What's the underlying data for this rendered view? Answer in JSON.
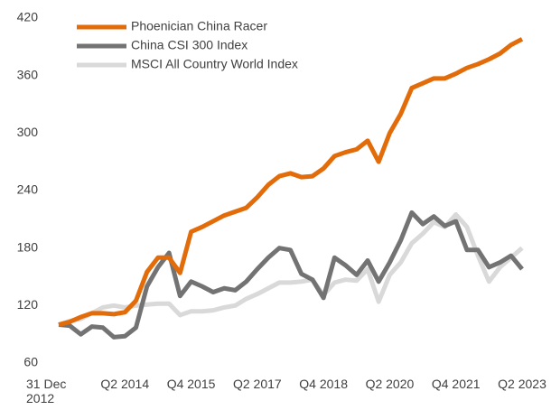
{
  "chart_data": {
    "type": "line",
    "categories": [
      "31 Dec 2012",
      null,
      null,
      null,
      null,
      null,
      "Q2 2014",
      null,
      null,
      null,
      null,
      null,
      "Q4 2015",
      null,
      null,
      null,
      null,
      null,
      "Q2 2017",
      null,
      null,
      null,
      null,
      null,
      "Q4 2018",
      null,
      null,
      null,
      null,
      null,
      "Q2 2020",
      null,
      null,
      null,
      null,
      null,
      "Q4 2021",
      null,
      null,
      null,
      null,
      null,
      "Q2 2023"
    ],
    "series": [
      {
        "name": "Phoenician China Racer",
        "color": "#e36c0a",
        "values": [
          100,
          103,
          108,
          112,
          112,
          111,
          113,
          125,
          155,
          170,
          170,
          154,
          197,
          202,
          208,
          214,
          218,
          222,
          233,
          246,
          255,
          258,
          254,
          255,
          263,
          276,
          280,
          283,
          292,
          270,
          300,
          320,
          347,
          352,
          357,
          357,
          362,
          368,
          372,
          377,
          383,
          392,
          398
        ]
      },
      {
        "name": "China CSI 300 Index",
        "color": "#737373",
        "values": [
          100,
          99,
          90,
          98,
          97,
          87,
          88,
          97,
          140,
          160,
          175,
          130,
          145,
          140,
          134,
          138,
          136,
          145,
          158,
          170,
          180,
          178,
          153,
          147,
          128,
          170,
          162,
          152,
          167,
          145,
          165,
          188,
          217,
          205,
          213,
          203,
          208,
          178,
          178,
          160,
          165,
          172,
          158
        ]
      },
      {
        "name": "MSCI All Country World Index",
        "color": "#d9d9d9",
        "values": [
          100,
          104,
          106,
          112,
          118,
          120,
          118,
          120,
          121,
          122,
          122,
          110,
          114,
          114,
          115,
          118,
          120,
          127,
          132,
          138,
          144,
          144,
          145,
          147,
          131,
          144,
          147,
          146,
          158,
          124,
          152,
          165,
          185,
          195,
          207,
          202,
          215,
          202,
          172,
          145,
          160,
          170,
          180
        ]
      }
    ],
    "ylim": [
      60,
      420
    ],
    "yticks": [
      60,
      120,
      180,
      240,
      300,
      360,
      420
    ],
    "grid": false,
    "legend": "top-left"
  }
}
